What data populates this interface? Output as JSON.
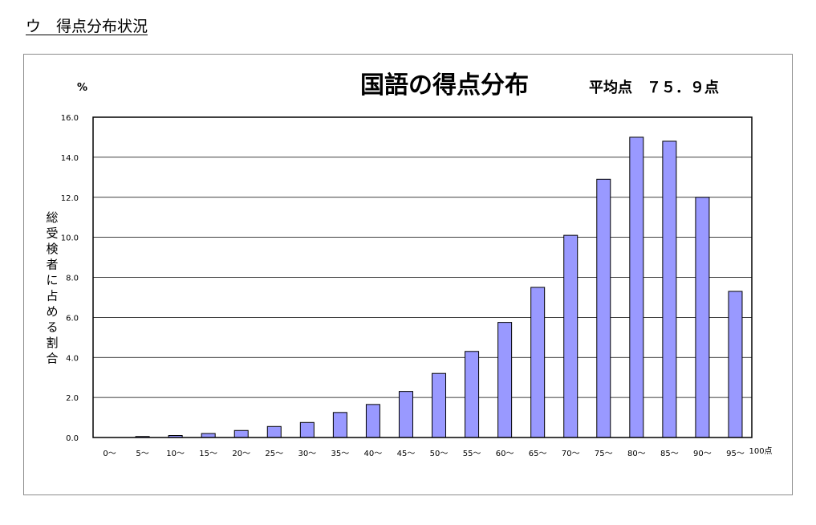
{
  "heading": "ウ　得点分布状況",
  "chart_data": {
    "type": "bar",
    "title": "国語の得点分布",
    "average_label": "平均点　７５．９点",
    "y_unit": "%",
    "ylabel": "総受検者に占める割合",
    "xlabel": "",
    "x_end_label": "100点",
    "ylim": [
      0,
      16
    ],
    "yticks": [
      "0.0",
      "2.0",
      "4.0",
      "6.0",
      "8.0",
      "10.0",
      "12.0",
      "14.0",
      "16.0"
    ],
    "grid": true,
    "bar_color": "#9999ff",
    "categories": [
      "0～",
      "5～",
      "10～",
      "15～",
      "20～",
      "25～",
      "30～",
      "35～",
      "40～",
      "45～",
      "50～",
      "55～",
      "60～",
      "65～",
      "70～",
      "75～",
      "80～",
      "85～",
      "90～",
      "95～"
    ],
    "values": [
      0.0,
      0.05,
      0.1,
      0.2,
      0.35,
      0.55,
      0.75,
      1.25,
      1.65,
      2.3,
      3.2,
      4.3,
      5.75,
      7.5,
      10.1,
      12.9,
      15.0,
      14.8,
      12.0,
      7.3
    ]
  }
}
